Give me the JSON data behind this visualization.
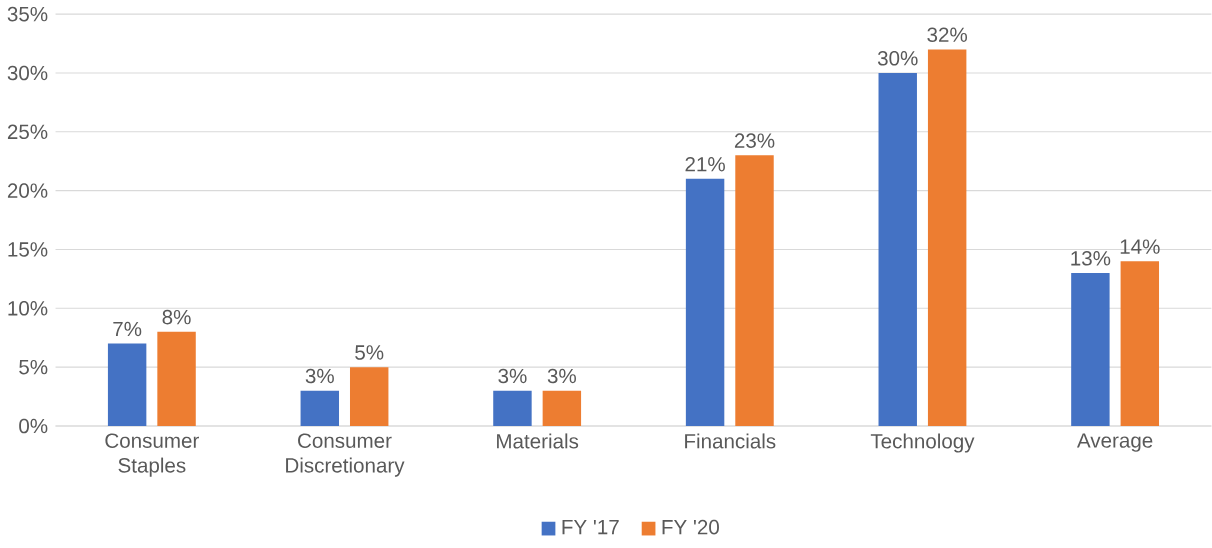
{
  "chart_data": {
    "type": "bar",
    "categories": [
      "Consumer Staples",
      "Consumer Discretionary",
      "Materials",
      "Financials",
      "Technology",
      "Average"
    ],
    "series": [
      {
        "name": "FY '17",
        "color": "#4472c4",
        "values": [
          7,
          3,
          3,
          21,
          30,
          13
        ],
        "value_labels": [
          "7%",
          "3%",
          "3%",
          "21%",
          "30%",
          "13%"
        ]
      },
      {
        "name": "FY '20",
        "color": "#ed7d31",
        "values": [
          8,
          5,
          3,
          23,
          32,
          14
        ],
        "value_labels": [
          "8%",
          "5%",
          "3%",
          "23%",
          "32%",
          "14%"
        ]
      }
    ],
    "ylim": [
      0,
      35
    ],
    "yticks": [
      {
        "value": 0,
        "label": "0%"
      },
      {
        "value": 5,
        "label": "5%"
      },
      {
        "value": 10,
        "label": "10%"
      },
      {
        "value": 15,
        "label": "15%"
      },
      {
        "value": 20,
        "label": "20%"
      },
      {
        "value": 25,
        "label": "25%"
      },
      {
        "value": 30,
        "label": "30%"
      },
      {
        "value": 35,
        "label": "35%"
      }
    ],
    "grid": "y",
    "legend": "bottom"
  }
}
